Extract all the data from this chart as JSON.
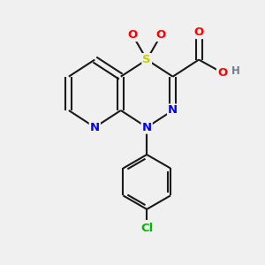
{
  "bg_color": "#f0f0f0",
  "bond_color": "#1a1a1a",
  "atom_colors": {
    "S": "#cccc00",
    "O": "#ff0000",
    "N": "#0000ff",
    "Cl": "#00bb00",
    "H": "#708090",
    "C": "#1a1a1a"
  },
  "figsize": [
    3.0,
    3.0
  ],
  "dpi": 100
}
